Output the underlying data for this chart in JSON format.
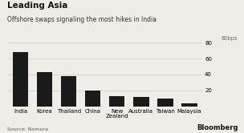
{
  "title": "Leading Asia",
  "subtitle": "Offshore swaps signaling the most hikes in India",
  "ylabel_text": "80bps",
  "source": "Source: Nomura",
  "categories": [
    "India",
    "Korea",
    "Thailand",
    "China",
    "New\nZealand",
    "Australia",
    "Taiwan",
    "Malaysia"
  ],
  "values": [
    68,
    43,
    38,
    20,
    13,
    12,
    10,
    4
  ],
  "bar_color": "#1a1a1a",
  "background_color": "#f0ede8",
  "grid_color": "#cccccc",
  "yticks": [
    20,
    40,
    60,
    80
  ],
  "ylim": [
    0,
    80
  ],
  "title_fontsize": 7.5,
  "subtitle_fontsize": 5.5,
  "tick_fontsize": 5.0,
  "source_fontsize": 4.5,
  "bloomberg_fontsize": 6.0,
  "ylabel_fontsize": 4.8
}
